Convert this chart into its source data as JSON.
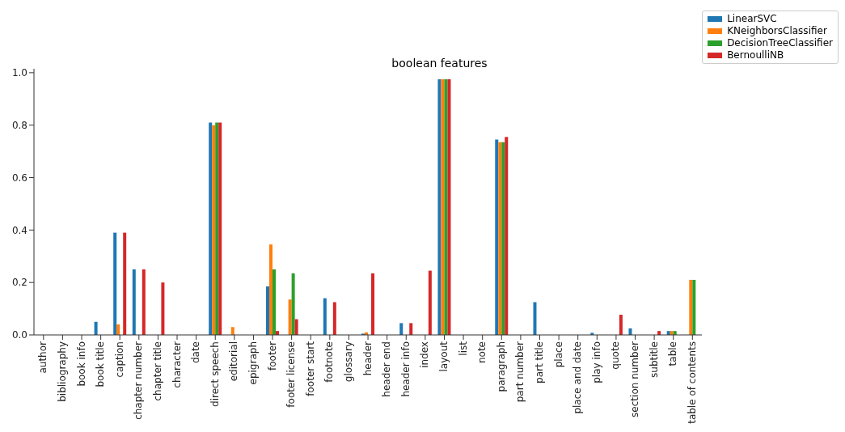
{
  "chart_data": {
    "type": "bar",
    "title": "boolean features",
    "categories": [
      "author",
      "bibliography",
      "book info",
      "book title",
      "caption",
      "chapter number",
      "chapter title",
      "character",
      "date",
      "direct speech",
      "editorial",
      "epigraph",
      "footer",
      "footer license",
      "footer start",
      "footnote",
      "glossary",
      "header",
      "header end",
      "header info",
      "index",
      "layout",
      "list",
      "note",
      "paragraph",
      "part number",
      "part title",
      "place",
      "place and date",
      "play info",
      "quote",
      "section number",
      "subtitle",
      "table",
      "table of contents"
    ],
    "series": [
      {
        "name": "LinearSVC",
        "color": "#1f77b4",
        "values": [
          0,
          0,
          0,
          0.05,
          0.39,
          0.25,
          0,
          0,
          0,
          0.81,
          0,
          0,
          0.185,
          0,
          0,
          0.14,
          0,
          0.005,
          0,
          0.045,
          0,
          0.975,
          0,
          0,
          0.745,
          0,
          0.125,
          0,
          0,
          0.008,
          0,
          0.025,
          0,
          0.015,
          0
        ]
      },
      {
        "name": "KNeighborsClassifier",
        "color": "#ff7f0e",
        "values": [
          0,
          0,
          0,
          0,
          0.04,
          0,
          0,
          0,
          0,
          0.8,
          0.03,
          0,
          0.345,
          0.135,
          0,
          null,
          0,
          0.01,
          0,
          0,
          0,
          0.975,
          0,
          0,
          0.735,
          0,
          0,
          0,
          0,
          0,
          0,
          0,
          0,
          0.015,
          0.21
        ]
      },
      {
        "name": "DecisionTreeClassifier",
        "color": "#2ca02c",
        "values": [
          0,
          0,
          0,
          0,
          0,
          0,
          0,
          0,
          0,
          0.81,
          null,
          0,
          0.25,
          0.235,
          0,
          0,
          0,
          0,
          0,
          0,
          0,
          0.975,
          0,
          0,
          0.735,
          0,
          0,
          0,
          0,
          0,
          null,
          0,
          0,
          0.015,
          0.21
        ]
      },
      {
        "name": "BernoulliNB",
        "color": "#d62728",
        "values": [
          0,
          0,
          0,
          0,
          0.39,
          0.25,
          0.2,
          0,
          0,
          0.81,
          0,
          0,
          0.015,
          0.06,
          0,
          0.125,
          0,
          0.235,
          0,
          0.045,
          0.245,
          0.975,
          0,
          0,
          0.755,
          0,
          0,
          0,
          0,
          0,
          0.077,
          0,
          0.015,
          0,
          0
        ]
      }
    ],
    "ylim": [
      0,
      1.015
    ],
    "yticks": [
      {
        "value": 0,
        "label": "0.0"
      },
      {
        "value": 0.2,
        "label": "0.2"
      },
      {
        "value": 0.4,
        "label": "0.4"
      },
      {
        "value": 0.6,
        "label": "0.6"
      },
      {
        "value": 0.8,
        "label": "0.8"
      },
      {
        "value": 1,
        "label": "1.0"
      }
    ],
    "legend": "top right"
  }
}
